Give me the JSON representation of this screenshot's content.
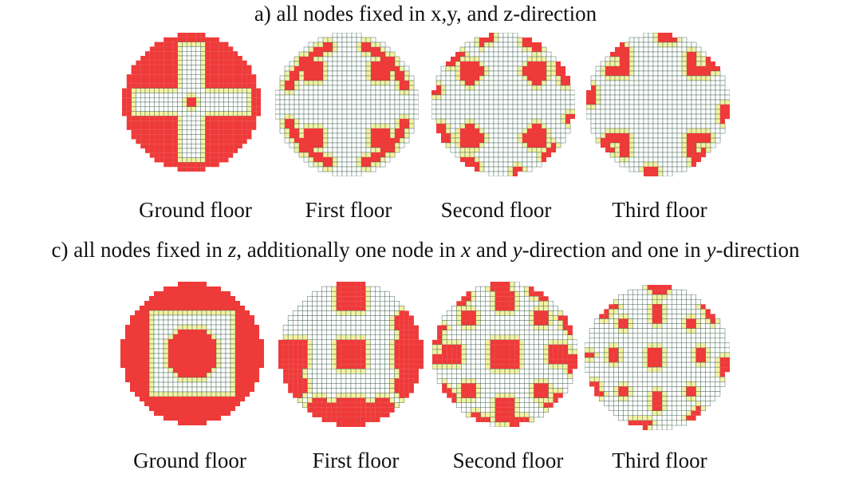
{
  "panel_a": {
    "title": "a) all nodes fixed in x,y, and z-direction",
    "floors": [
      {
        "label": "Ground floor"
      },
      {
        "label": "First floor"
      },
      {
        "label": "Second floor"
      },
      {
        "label": "Third floor"
      }
    ]
  },
  "panel_c": {
    "title_parts": [
      {
        "text": "c) all nodes fixed in ",
        "italic": false
      },
      {
        "text": "z",
        "italic": true
      },
      {
        "text": ", additionally one node in ",
        "italic": false
      },
      {
        "text": "x",
        "italic": true
      },
      {
        "text": " and ",
        "italic": false
      },
      {
        "text": "y",
        "italic": true
      },
      {
        "text": "-direction and one in ",
        "italic": false
      },
      {
        "text": "y",
        "italic": true
      },
      {
        "text": "-direction",
        "italic": false
      }
    ],
    "floors": [
      {
        "label": "Ground floor"
      },
      {
        "label": "First floor"
      },
      {
        "label": "Second floor"
      },
      {
        "label": "Third floor"
      }
    ]
  },
  "colors": {
    "material": "#ef3a3a",
    "transition": "#f4f3a2",
    "void": "#ffffff",
    "grid": "#3d5f4e"
  }
}
